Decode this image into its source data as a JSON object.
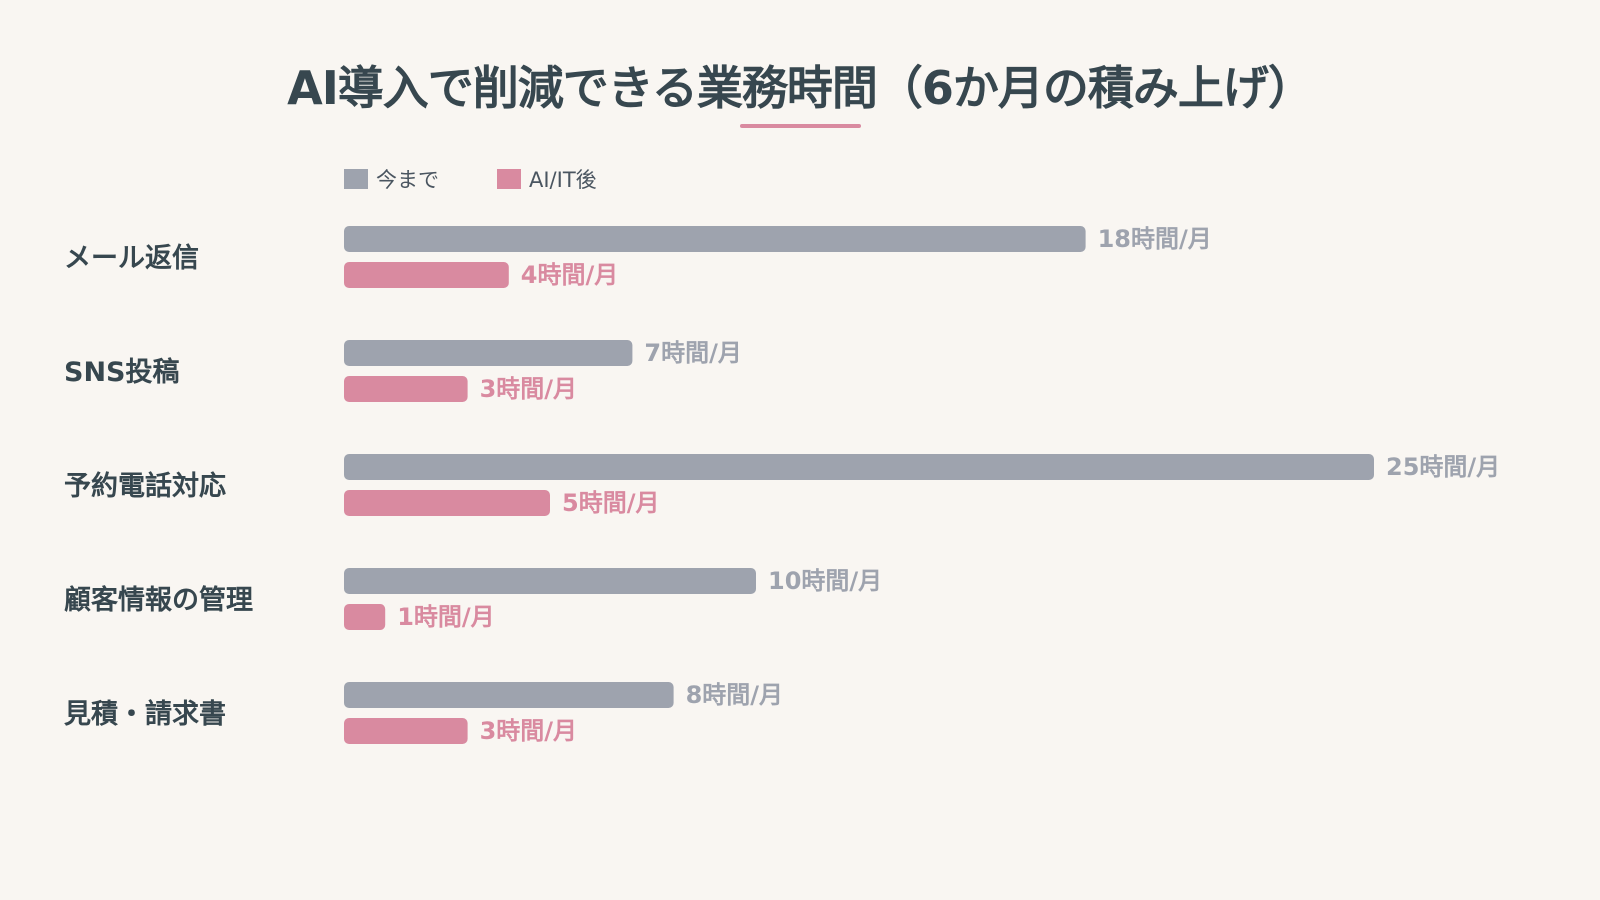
{
  "title": "AI導入で削減できる業務時間（6か月の積み上げ）",
  "colors": {
    "before": "#9ea3ae",
    "after": "#d98aa0",
    "before_text": "#9ea3ae",
    "after_text": "#d98aa0",
    "accent": "#d98aa0",
    "background": "#f9f6f2"
  },
  "legend": {
    "before_label": "今まで",
    "after_label": "AI/IT後"
  },
  "chart_data": {
    "type": "bar",
    "orientation": "horizontal",
    "title": "AI導入で削減できる業務時間（6か月の積み上げ）",
    "categories": [
      "メール返信",
      "SNS投稿",
      "予約電話対応",
      "顧客情報の管理",
      "見積・請求書"
    ],
    "series": [
      {
        "name": "今まで",
        "values": [
          18,
          7,
          25,
          10,
          8
        ],
        "labels": [
          "18時間/月",
          "7時間/月",
          "25時間/月",
          "10時間/月",
          "8時間/月"
        ]
      },
      {
        "name": "AI/IT後",
        "values": [
          4,
          3,
          5,
          1,
          3
        ],
        "labels": [
          "4時間/月",
          "3時間/月",
          "5時間/月",
          "1時間/月",
          "3時間/月"
        ]
      }
    ],
    "xlim": [
      0,
      25
    ],
    "grid": false,
    "legend_position": "top-left"
  }
}
